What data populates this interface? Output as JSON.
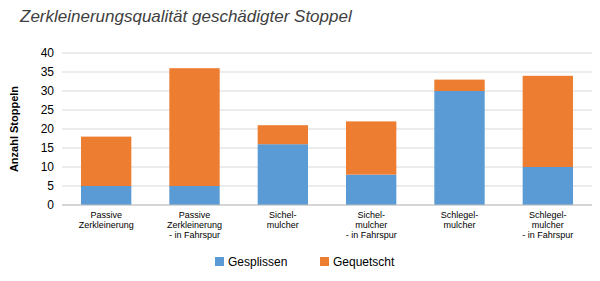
{
  "chart_data": {
    "type": "bar",
    "title": "Zerkleinerungsqualität geschädigter Stoppel",
    "y_label": "Anzahl Stoppeln",
    "categories": [
      "Passive\nZerkleinerung",
      "Passive\nZerkleinerung\n- in Fahrspur",
      "Sichel-\nmulcher",
      "Sichel-\nmulcher\n- in Fahrspur",
      "Schlegel-\nmulcher",
      "Schlegel-\nmulcher\n- in Fahrspur"
    ],
    "series": [
      {
        "name": "Gesplissen",
        "color": "#5b9bd5",
        "values": [
          5,
          5,
          16,
          8,
          30,
          10
        ]
      },
      {
        "name": "Gequetscht",
        "color": "#ed7d31",
        "values": [
          13,
          31,
          5,
          14,
          3,
          24
        ]
      }
    ],
    "stacked": true,
    "ylim": [
      0,
      40
    ],
    "yticks": [
      0,
      5,
      10,
      15,
      20,
      25,
      30,
      35,
      40
    ],
    "grid": true,
    "legend": "bottom"
  }
}
